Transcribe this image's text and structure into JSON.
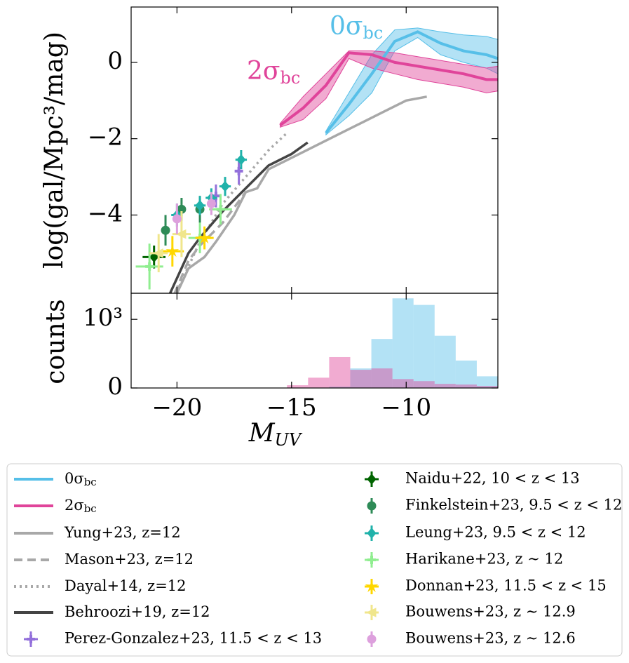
{
  "chart_data": [
    {
      "type": "line",
      "ylabel": "log(gal/Mpc³/mag)",
      "xlim": [
        -22,
        -6
      ],
      "ylim": [
        -6.05,
        1.45
      ],
      "yticks": [
        0,
        {
          "value": -2,
          "label": "−2"
        },
        {
          "value": -4,
          "label": "−4"
        }
      ],
      "series": [
        {
          "name": "0σ",
          "name_sub": "bc",
          "color": "#56bfe8",
          "x": [
            -13.5,
            -12.5,
            -11.5,
            -10.5,
            -9.5,
            -8.5,
            -7.5,
            -6.5,
            -6
          ],
          "values": [
            -1.85,
            -1.1,
            -0.3,
            0.55,
            0.8,
            0.5,
            0.3,
            0.2,
            0.1
          ],
          "band_high": [
            -1.8,
            -0.8,
            0.2,
            0.85,
            0.9,
            0.8,
            0.72,
            0.68,
            0.6
          ],
          "band_low": [
            -1.9,
            -1.4,
            -0.8,
            0.3,
            0.65,
            0.2,
            0.0,
            -0.15,
            -0.3
          ]
        },
        {
          "name": "2σ",
          "name_sub": "bc",
          "color": "#e0449a",
          "x": [
            -15.5,
            -14.5,
            -13.5,
            -12.5,
            -11.5,
            -10.5,
            -9.5,
            -8.5,
            -7.5,
            -6.5,
            -6
          ],
          "values": [
            -1.65,
            -1.2,
            -0.6,
            0.25,
            0.2,
            0.0,
            -0.1,
            -0.2,
            -0.3,
            -0.45,
            -0.45
          ],
          "band_high": [
            -1.6,
            -0.9,
            -0.3,
            0.3,
            0.3,
            0.25,
            0.15,
            0.05,
            -0.05,
            -0.15,
            -0.1
          ],
          "band_low": [
            -1.7,
            -1.5,
            -0.95,
            0.1,
            -0.15,
            -0.3,
            -0.45,
            -0.55,
            -0.65,
            -0.8,
            -0.75
          ]
        },
        {
          "name": "Yung+23, z=12",
          "color": "#a8a8a8",
          "dash": "solid",
          "x": [
            -20,
            -19.5,
            -18.8,
            -18.3,
            -17.5,
            -17,
            -16.5,
            -16,
            -15,
            -14,
            -13,
            -12,
            -11,
            -10,
            -9.1
          ],
          "values": [
            -6.05,
            -5.4,
            -5.1,
            -4.7,
            -4.0,
            -3.4,
            -3.3,
            -2.8,
            -2.5,
            -2.2,
            -1.9,
            -1.6,
            -1.3,
            -1.0,
            -0.9
          ]
        },
        {
          "name": "Mason+23, z=12",
          "color": "#a8a8a8",
          "dash": "dashed",
          "x": [
            -20.1,
            -19.5,
            -19,
            -18.5,
            -18,
            -17.5,
            -17
          ],
          "values": [
            -6.05,
            -5.2,
            -4.8,
            -4.5,
            -4.2,
            -3.8,
            -3.4
          ]
        },
        {
          "name": "Dayal+14, z=12",
          "color": "#a8a8a8",
          "dash": "dotted",
          "x": [
            -20,
            -19,
            -18,
            -17,
            -16,
            -15.2
          ],
          "values": [
            -6.0,
            -4.7,
            -3.7,
            -3.0,
            -2.3,
            -1.85
          ]
        },
        {
          "name": "Behroozi+19, z=12",
          "color": "#444444",
          "dash": "solid",
          "x": [
            -20.3,
            -19.5,
            -19,
            -18,
            -17,
            -16,
            -15,
            -14.3
          ],
          "values": [
            -6.05,
            -5.0,
            -4.6,
            -3.9,
            -3.3,
            -2.7,
            -2.4,
            -2.1
          ]
        }
      ],
      "points": [
        {
          "name": "Perez-Gonzalez+23, 11.5 < z < 13",
          "color": "#9370db",
          "marker": "plus",
          "x": [
            -17.3,
            -18.3
          ],
          "values": [
            -2.85,
            -3.5
          ],
          "xerr": [
            0.1,
            0.1
          ],
          "yerr": [
            0.35,
            0.3
          ]
        },
        {
          "name": "Naidu+22, 10 < z < 13",
          "color": "#006400",
          "marker": "diamond",
          "x": [
            -21
          ],
          "values": [
            -5.1
          ],
          "xerr": [
            0.5
          ],
          "yerr": [
            0.3
          ]
        },
        {
          "name": "Finkelstein+23, 9.5 < z < 12",
          "color": "#2e8b57",
          "marker": "circle",
          "x": [
            -20.5,
            -19.8,
            -19
          ],
          "values": [
            -4.4,
            -3.85,
            -3.85
          ],
          "xerr": [
            0,
            0,
            0
          ],
          "yerr": [
            0.4,
            0.3,
            0.35
          ]
        },
        {
          "name": "Leung+23, 9.5 < z < 12",
          "color": "#20b2aa",
          "marker": "diamond",
          "x": [
            -20,
            -19,
            -18.5,
            -17.9,
            -17.2
          ],
          "values": [
            -4.0,
            -3.75,
            -3.55,
            -3.25,
            -2.55
          ],
          "xerr": [
            0.25,
            0.25,
            0.25,
            0.25,
            0.25
          ],
          "yerr": [
            0.3,
            0.25,
            0.25,
            0.25,
            0.25
          ]
        },
        {
          "name": "Harikane+23, z ∼ 12",
          "color": "#90ee90",
          "marker": "plus",
          "x": [
            -21.2,
            -19,
            -18.1
          ],
          "values": [
            -5.35,
            -4.6,
            -3.85
          ],
          "xerr": [
            0.6,
            0.5,
            0.5
          ],
          "yerr": [
            0.6,
            0.4,
            0.4
          ]
        },
        {
          "name": "Donnan+23, 11.5 < z < 15",
          "color": "#ffd700",
          "marker": "star",
          "x": [
            -20.2,
            -18.8
          ],
          "values": [
            -4.95,
            -4.6
          ],
          "xerr": [
            0.5,
            0.4
          ],
          "yerr": [
            0.4,
            0.3
          ]
        },
        {
          "name": "Bouwens+23, z ∼ 12.9",
          "color": "#f0e68c",
          "marker": "triangle",
          "x": [
            -20.8,
            -19.8
          ],
          "values": [
            -5.0,
            -4.5
          ],
          "xerr": [
            0.4,
            0.4
          ],
          "yerr": [
            0.5,
            0.6
          ]
        },
        {
          "name": "Bouwens+23, z ∼ 12.6",
          "color": "#dda0dd",
          "marker": "circle",
          "x": [
            -20,
            -18.5
          ],
          "values": [
            -4.1,
            -3.7
          ],
          "xerr": [
            0.1,
            0.1
          ],
          "yerr": [
            0.4,
            0.3
          ]
        }
      ]
    },
    {
      "type": "histogram",
      "xlabel": "M",
      "xlabel_sub": "UV",
      "ylabel": "counts",
      "xlim": [
        -22,
        -6
      ],
      "ylim": [
        0,
        1380
      ],
      "xticks": [
        {
          "value": -20,
          "label": "−20"
        },
        {
          "value": -15,
          "label": "−15"
        },
        {
          "value": -10,
          "label": "−10"
        }
      ],
      "yticks": [
        0,
        {
          "value": 1000,
          "label": "10³"
        }
      ],
      "bins": [
        -15.2,
        -14.28,
        -13.36,
        -12.44,
        -11.52,
        -10.6,
        -9.68,
        -8.76,
        -7.84,
        -6.92,
        -6.0
      ],
      "series": [
        {
          "color": "#56bfe8",
          "values": [
            0,
            0,
            20,
            285,
            714,
            1306,
            1210,
            760,
            400,
            170
          ]
        },
        {
          "color": "#e0449a",
          "values": [
            40,
            150,
            450,
            265,
            285,
            130,
            100,
            60,
            50,
            30
          ]
        }
      ]
    }
  ]
}
